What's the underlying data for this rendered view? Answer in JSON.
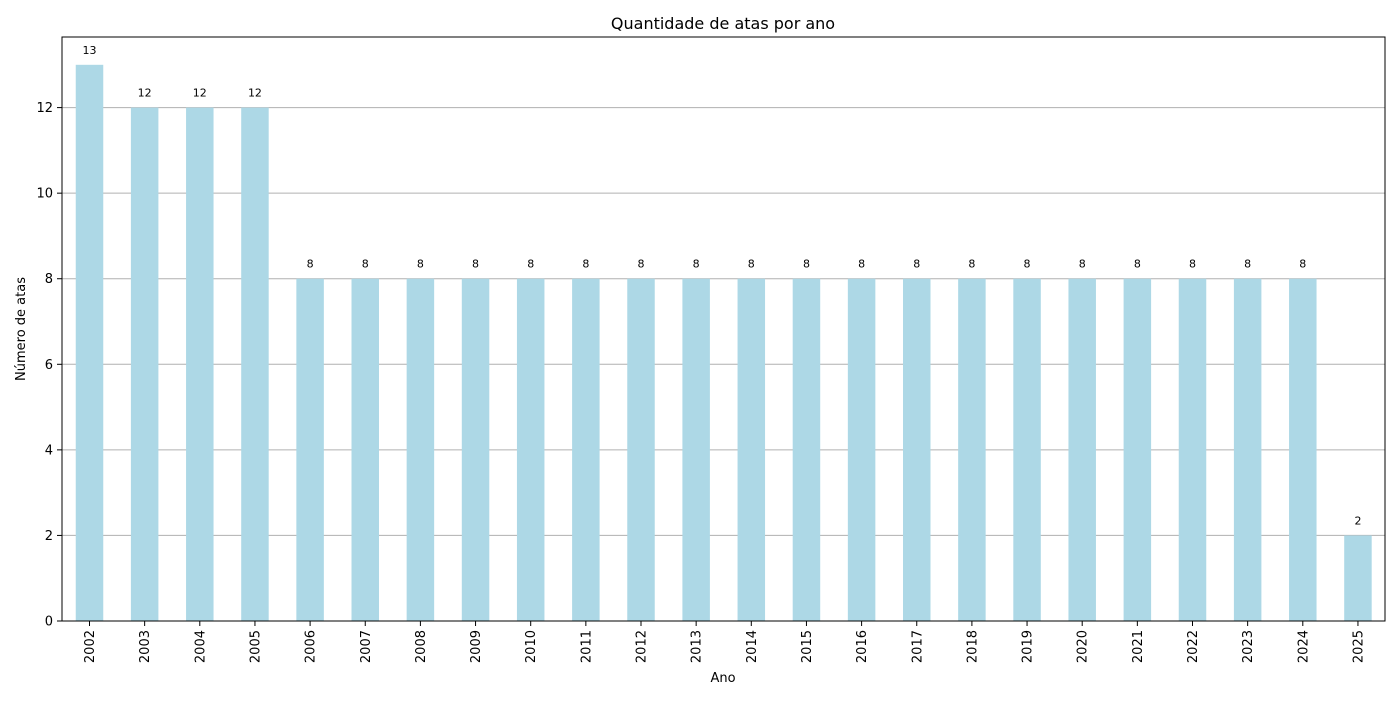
{
  "chart_data": {
    "type": "bar",
    "title": "Quantidade de atas por ano",
    "xlabel": "Ano",
    "ylabel": "Número de atas",
    "categories": [
      "2002",
      "2003",
      "2004",
      "2005",
      "2006",
      "2007",
      "2008",
      "2009",
      "2010",
      "2011",
      "2012",
      "2013",
      "2014",
      "2015",
      "2016",
      "2017",
      "2018",
      "2019",
      "2020",
      "2021",
      "2022",
      "2023",
      "2024",
      "2025"
    ],
    "values": [
      13,
      12,
      12,
      12,
      8,
      8,
      8,
      8,
      8,
      8,
      8,
      8,
      8,
      8,
      8,
      8,
      8,
      8,
      8,
      8,
      8,
      8,
      8,
      2
    ],
    "ylim": [
      0,
      13.65
    ],
    "yticks": [
      0,
      2,
      4,
      6,
      8,
      10,
      12
    ],
    "grid": "horizontal",
    "bar_color": "#add8e6",
    "grid_color": "#b0b0b0",
    "data_labels": true
  }
}
